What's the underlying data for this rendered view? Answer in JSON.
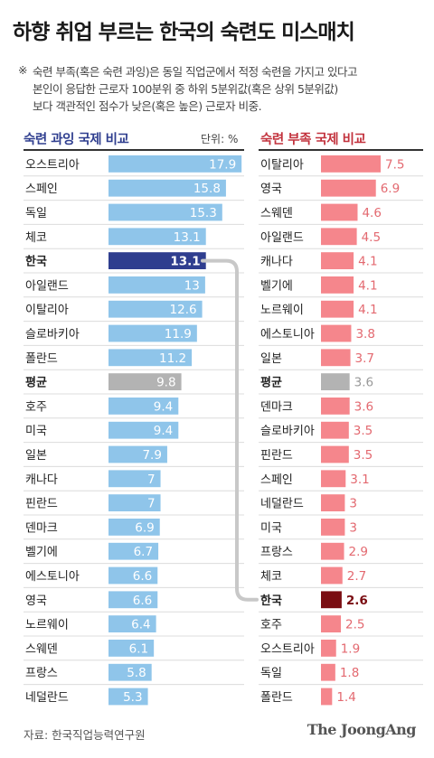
{
  "title": "하향 취업 부르는 한국의 숙련도 미스매치",
  "note": {
    "mark": "※",
    "lines": [
      "숙련 부족(혹은 숙련 과잉)은 동일 직업군에서 적정 숙련을 가지고 있다고",
      "본인이 응답한 근로자 100분위 중 하위 5분위값(혹은 상위 5분위값)",
      "보다 객관적인 점수가 낮은(혹은 높은) 근로자 비중."
    ]
  },
  "unit_label": "단위: %",
  "source": "자료: 한국직업능력연구원",
  "brand": "The JoongAng",
  "colors": {
    "left_bar": "#8fc5ea",
    "left_highlight": "#2f3e8f",
    "right_bar": "#f5868c",
    "right_highlight": "#7a0d12",
    "average": "#b3b3b3",
    "left_value_text": "#ffffff",
    "right_value_text": "#e36970",
    "right_avg_text": "#999999",
    "connector": "#c8c8c8"
  },
  "chart_data": [
    {
      "type": "bar",
      "orientation": "horizontal",
      "title": "숙련 과잉 국제 비교",
      "unit": "%",
      "categories": [
        "오스트리아",
        "스페인",
        "독일",
        "체코",
        "한국",
        "아일랜드",
        "이탈리아",
        "슬로바키아",
        "폴란드",
        "평균",
        "호주",
        "미국",
        "일본",
        "캐나다",
        "핀란드",
        "덴마크",
        "벨기에",
        "에스토니아",
        "영국",
        "노르웨이",
        "스웨덴",
        "프랑스",
        "네덜란드"
      ],
      "values": [
        17.9,
        15.8,
        15.3,
        13.1,
        13.1,
        13,
        12.6,
        11.9,
        11.2,
        9.8,
        9.4,
        9.4,
        7.9,
        7,
        7,
        6.9,
        6.7,
        6.6,
        6.6,
        6.4,
        6.1,
        5.8,
        5.3
      ],
      "value_labels": [
        "17.9",
        "15.8",
        "15.3",
        "13.1",
        "13.1",
        "13",
        "12.6",
        "11.9",
        "11.2",
        "9.8",
        "9.4",
        "9.4",
        "7.9",
        "7",
        "7",
        "6.9",
        "6.7",
        "6.6",
        "6.6",
        "6.4",
        "6.1",
        "5.8",
        "5.3"
      ],
      "highlight": "한국",
      "average": "평균",
      "xlim": [
        0,
        18
      ]
    },
    {
      "type": "bar",
      "orientation": "horizontal",
      "title": "숙련 부족 국제 비교",
      "unit": "%",
      "categories": [
        "이탈리아",
        "영국",
        "스웨덴",
        "아일랜드",
        "캐나다",
        "벨기에",
        "노르웨이",
        "에스토니아",
        "일본",
        "평균",
        "덴마크",
        "슬로바키아",
        "핀란드",
        "스페인",
        "네덜란드",
        "미국",
        "프랑스",
        "체코",
        "한국",
        "호주",
        "오스트리아",
        "독일",
        "폴란드"
      ],
      "values": [
        7.5,
        6.9,
        4.6,
        4.5,
        4.1,
        4.1,
        4.1,
        3.8,
        3.7,
        3.6,
        3.6,
        3.5,
        3.5,
        3.1,
        3,
        3,
        2.9,
        2.7,
        2.6,
        2.5,
        1.9,
        1.8,
        1.4
      ],
      "value_labels": [
        "7.5",
        "6.9",
        "4.6",
        "4.5",
        "4.1",
        "4.1",
        "4.1",
        "3.8",
        "3.7",
        "3.6",
        "3.6",
        "3.5",
        "3.5",
        "3.1",
        "3",
        "3",
        "2.9",
        "2.7",
        "2.6",
        "2.5",
        "1.9",
        "1.8",
        "1.4"
      ],
      "highlight": "한국",
      "average": "평균",
      "xlim": [
        0,
        7.5
      ]
    }
  ]
}
